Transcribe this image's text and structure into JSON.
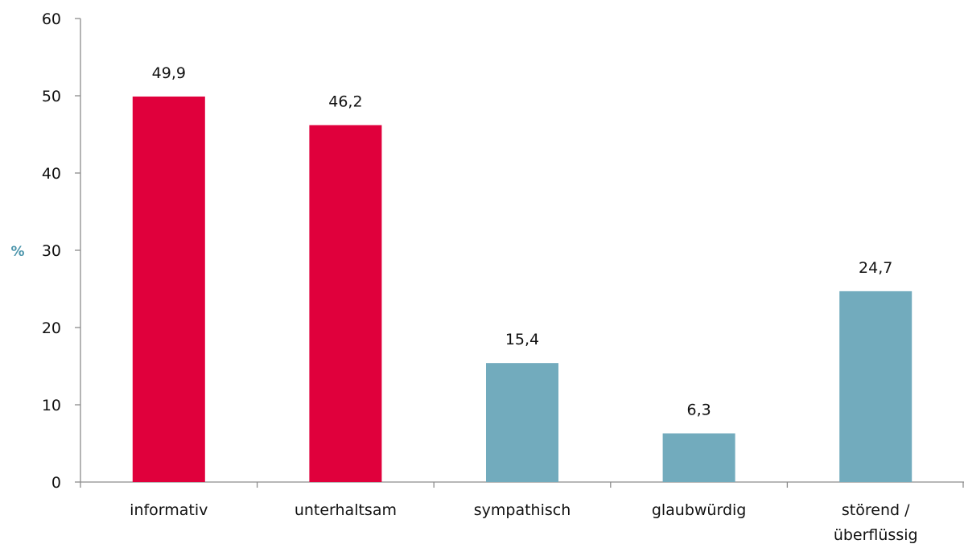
{
  "chart_data": {
    "type": "bar",
    "categories": [
      [
        "informativ"
      ],
      [
        "unterhaltsam"
      ],
      [
        "sympathisch"
      ],
      [
        "glaubwürdig"
      ],
      [
        "störend /",
        "überflüssig"
      ]
    ],
    "values": [
      49.9,
      46.2,
      15.4,
      6.3,
      24.7
    ],
    "data_labels": [
      "49,9",
      "46,2",
      "15,4",
      "6,3",
      "24,7"
    ],
    "bar_colors": [
      "#e0003c",
      "#e0003c",
      "#72abbd",
      "#72abbd",
      "#72abbd"
    ],
    "ylabel": "%",
    "ylabel_color": "#4f97ad",
    "ylim": [
      0,
      60
    ],
    "yticks": [
      0,
      10,
      20,
      30,
      40,
      50,
      60
    ],
    "grid": false,
    "legend": "none"
  }
}
